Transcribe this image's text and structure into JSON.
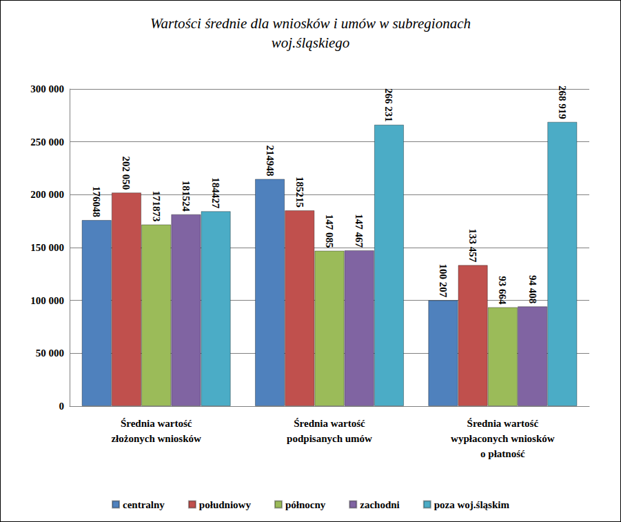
{
  "chart_data": {
    "type": "bar",
    "title": "Wartości średnie dla wniosków i umów w subregionach\nwoj.śląskiego",
    "categories": [
      "Średnia wartość\nzłożonych wniosków",
      "Średnia wartość\npodpisanych umów",
      "Średnia wartość\nwypłaconych wniosków\no płatność"
    ],
    "series": [
      {
        "name": "centralny",
        "color": "#4f81bd",
        "values": [
          176048,
          214948,
          100207
        ],
        "value_labels": [
          "176048",
          "214948",
          "100 207"
        ]
      },
      {
        "name": "południowy",
        "color": "#c0504d",
        "values": [
          202050,
          185215,
          133457
        ],
        "value_labels": [
          "202 050",
          "185215",
          "133 457"
        ]
      },
      {
        "name": "północny",
        "color": "#9bbb59",
        "values": [
          171873,
          147085,
          93664
        ],
        "value_labels": [
          "171873",
          "147 085",
          "93 664"
        ]
      },
      {
        "name": "zachodni",
        "color": "#8064a2",
        "values": [
          181524,
          147467,
          94408
        ],
        "value_labels": [
          "181524",
          "147 467",
          "94 408"
        ]
      },
      {
        "name": "poza woj.śląskim",
        "color": "#4bacc6",
        "values": [
          184427,
          266231,
          268919
        ],
        "value_labels": [
          "184427",
          "266 231",
          "268 919"
        ]
      }
    ],
    "ylim": [
      0,
      300000
    ],
    "yticks": [
      0,
      {
        "value": 50000,
        "label": "50 000"
      },
      {
        "value": 100000,
        "label": "100 000"
      },
      {
        "value": 150000,
        "label": "150 000"
      },
      {
        "value": 200000,
        "label": "200 000"
      },
      {
        "value": 250000,
        "label": "250 000"
      },
      {
        "value": 300000,
        "label": "300 000"
      }
    ],
    "grid": true,
    "legend": "bottom",
    "data_labels": true
  }
}
